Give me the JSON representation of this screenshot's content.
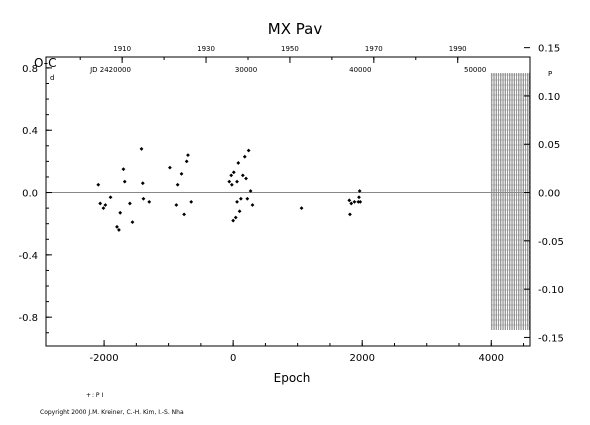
{
  "chart_data": {
    "type": "scatter",
    "title": "MX  Pav",
    "xlabel": "Epoch",
    "ylabel_left": "O-C",
    "ylabel_left_unit": "d",
    "ylabel_right_unit": "P",
    "xlim": [
      -2900,
      4600
    ],
    "ylim": [
      -0.985,
      0.87
    ],
    "x_ticks": [
      "-2000",
      "0",
      "2000",
      "4000"
    ],
    "x_tick_values": [
      -2000,
      0,
      2000,
      4000
    ],
    "y_ticks": [
      "0.8",
      "0.4",
      "0.0",
      "-0.4",
      "-0.8"
    ],
    "y_tick_values": [
      0.8,
      0.4,
      0.0,
      -0.4,
      -0.8
    ],
    "y2_ticks": [
      "0.15",
      "0.10",
      "0.05",
      "0.00",
      "-0.05",
      "-0.10",
      "-0.15"
    ],
    "y2_tick_values": [
      0.15,
      0.1,
      0.05,
      0.0,
      -0.05,
      -0.1,
      -0.15
    ],
    "y2_to_y_factor": 6.2,
    "top_axis": {
      "labels": [
        "1910",
        "1930",
        "1950",
        "1970",
        "1990"
      ],
      "label_epochs": [
        -1720,
        -420,
        880,
        2180,
        3480
      ],
      "jd_labels": [
        "JD 2420000",
        "30000",
        "40000",
        "50000"
      ],
      "jd_epochs": [
        -1900,
        200,
        1970,
        3750
      ]
    },
    "hatched_region": [
      4000,
      4700
    ],
    "series": [
      {
        "name": "P",
        "marker": "filled-diamond",
        "points": [
          {
            "x": -2090,
            "y": 0.05
          },
          {
            "x": -2060,
            "y": -0.07
          },
          {
            "x": -2010,
            "y": -0.1
          },
          {
            "x": -1980,
            "y": -0.08
          },
          {
            "x": -1900,
            "y": -0.03
          },
          {
            "x": -1800,
            "y": -0.22
          },
          {
            "x": -1770,
            "y": -0.24
          },
          {
            "x": -1750,
            "y": -0.13
          },
          {
            "x": -1700,
            "y": 0.15
          },
          {
            "x": -1680,
            "y": 0.07
          },
          {
            "x": -1600,
            "y": -0.07
          },
          {
            "x": -1560,
            "y": -0.19
          },
          {
            "x": -1420,
            "y": 0.28
          },
          {
            "x": -1400,
            "y": 0.06
          },
          {
            "x": -1390,
            "y": -0.04
          },
          {
            "x": -1300,
            "y": -0.06
          },
          {
            "x": -980,
            "y": 0.16
          },
          {
            "x": -880,
            "y": -0.08
          },
          {
            "x": -860,
            "y": 0.05
          },
          {
            "x": -800,
            "y": 0.12
          },
          {
            "x": -760,
            "y": -0.14
          },
          {
            "x": -720,
            "y": 0.2
          },
          {
            "x": -700,
            "y": 0.24
          },
          {
            "x": -650,
            "y": -0.06
          },
          {
            "x": -60,
            "y": 0.07
          },
          {
            "x": -30,
            "y": 0.11
          },
          {
            "x": -20,
            "y": 0.05
          },
          {
            "x": 0,
            "y": -0.18
          },
          {
            "x": 10,
            "y": 0.13
          },
          {
            "x": 40,
            "y": -0.16
          },
          {
            "x": 60,
            "y": 0.07
          },
          {
            "x": 60,
            "y": -0.06
          },
          {
            "x": 80,
            "y": 0.19
          },
          {
            "x": 100,
            "y": -0.12
          },
          {
            "x": 120,
            "y": -0.04
          },
          {
            "x": 150,
            "y": 0.11
          },
          {
            "x": 180,
            "y": 0.23
          },
          {
            "x": 200,
            "y": 0.09
          },
          {
            "x": 220,
            "y": -0.04
          },
          {
            "x": 240,
            "y": 0.27
          },
          {
            "x": 270,
            "y": 0.01
          },
          {
            "x": 300,
            "y": -0.08
          },
          {
            "x": 1060,
            "y": -0.1
          },
          {
            "x": 1800,
            "y": -0.05
          },
          {
            "x": 1810,
            "y": -0.14
          },
          {
            "x": 1830,
            "y": -0.07
          },
          {
            "x": 1880,
            "y": -0.06
          },
          {
            "x": 1940,
            "y": -0.06
          },
          {
            "x": 1950,
            "y": -0.03
          },
          {
            "x": 1960,
            "y": 0.01
          },
          {
            "x": 1970,
            "y": -0.06
          }
        ]
      }
    ],
    "legend": [
      {
        "symbol": "+",
        "label": ": P I"
      }
    ],
    "grid": false,
    "legend_position": "bottom-left"
  },
  "copyright": "Copyright 2000 J.M. Kreiner, C.-H. Kim, I.-S. Nha"
}
